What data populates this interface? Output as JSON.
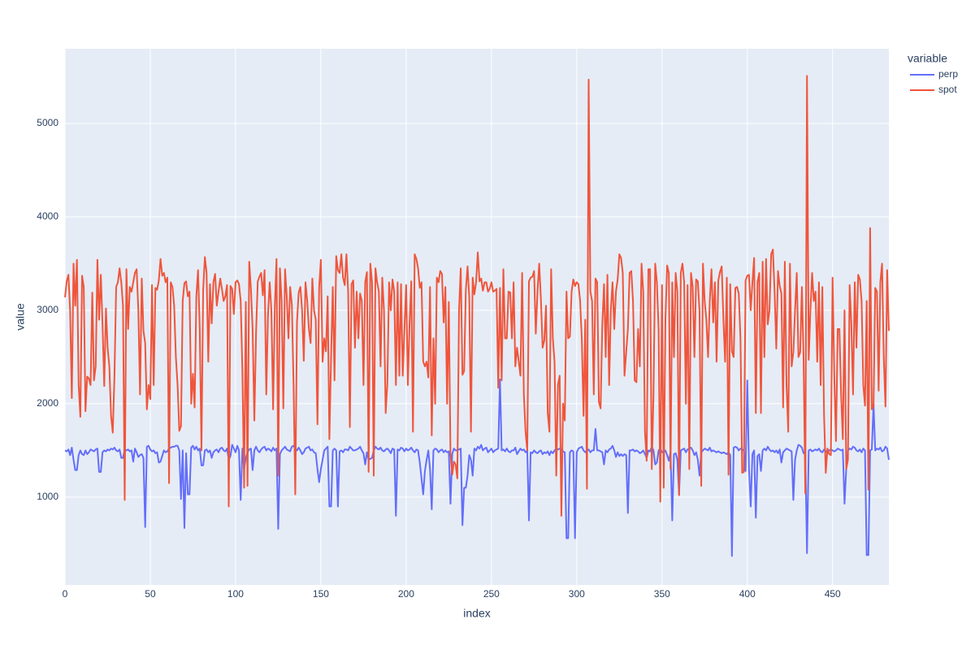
{
  "chart_data": {
    "type": "line",
    "xlabel": "index",
    "ylabel": "value",
    "legend_title": "variable",
    "legend": "right",
    "grid": true,
    "xlim": [
      0,
      483
    ],
    "xticks": [
      0,
      50,
      100,
      150,
      200,
      250,
      300,
      350,
      400,
      450
    ],
    "ylim": [
      60,
      5800
    ],
    "yticks": [
      1000,
      2000,
      3000,
      4000,
      5000
    ],
    "series": [
      {
        "name": "perp",
        "color": "#636efa",
        "values": [
          1500,
          1490,
          1510,
          1450,
          1530,
          1400,
          1290,
          1290,
          1450,
          1500,
          1460,
          1450,
          1500,
          1460,
          1480,
          1510,
          1500,
          1490,
          1510,
          1520,
          1270,
          1270,
          1480,
          1500,
          1490,
          1510,
          1500,
          1520,
          1510,
          1530,
          1500,
          1490,
          1510,
          1420,
          1420,
          1510,
          1500,
          1510,
          1490,
          1500,
          1380,
          1520,
          1480,
          1430,
          1450,
          1460,
          1420,
          680,
          1540,
          1550,
          1510,
          1490,
          1500,
          1470,
          1480,
          1370,
          1380,
          1440,
          1500,
          1480,
          1490,
          1520,
          1530,
          1540,
          1540,
          1550,
          1550,
          1500,
          980,
          1500,
          670,
          1470,
          1030,
          1030,
          1530,
          1550,
          1510,
          1540,
          1500,
          1520,
          1340,
          1340,
          1500,
          1510,
          1480,
          1500,
          1420,
          1480,
          1500,
          1510,
          1480,
          1520,
          1530,
          1500,
          1490,
          1520,
          1400,
          1440,
          1560,
          1520,
          1480,
          1550,
          1500,
          970,
          1520,
          1300,
          1420,
          1480,
          1510,
          1520,
          1290,
          1500,
          1540,
          1500,
          1480,
          1510,
          1530,
          1540,
          1500,
          1520,
          1510,
          1490,
          1530,
          1500,
          1520,
          660,
          1460,
          1500,
          1520,
          1540,
          1510,
          1500,
          1490,
          1540,
          1550,
          1520,
          1500,
          1530,
          1500,
          1460,
          1480,
          1520,
          1530,
          1540,
          1500,
          1510,
          1480,
          1470,
          1300,
          1160,
          1300,
          1400,
          1500,
          1520,
          1540,
          900,
          900,
          1500,
          1520,
          1500,
          900,
          1490,
          1500,
          1480,
          1510,
          1510,
          1500,
          1540,
          1520,
          1500,
          1500,
          1510,
          1520,
          1540,
          1500,
          1470,
          1350,
          1480,
          1400,
          1410,
          1420,
          1500,
          1540,
          1520,
          1510,
          1530,
          1500,
          1490,
          1510,
          1520,
          1500,
          1470,
          1520,
          1510,
          800,
          1510,
          1500,
          1530,
          1520,
          1490,
          1520,
          1500,
          1510,
          1530,
          1500,
          1480,
          1510,
          1500,
          1370,
          1200,
          1030,
          1280,
          1400,
          1500,
          1300,
          870,
          1500,
          1520,
          1510,
          1480,
          1500,
          1510,
          1480,
          1500,
          1480,
          1490,
          930,
          1460,
          1520,
          1500,
          1500,
          1510,
          1520,
          700,
          1100,
          1100,
          1230,
          1450,
          1400,
          1230,
          1520,
          1500,
          1540,
          1520,
          1560,
          1500,
          1520,
          1530,
          1480,
          1500,
          1520,
          1480,
          1500,
          1510,
          1520,
          2260,
          1500,
          1510,
          1490,
          1520,
          1490,
          1480,
          1500,
          1500,
          1530,
          1460,
          1490,
          1520,
          1500,
          1510,
          1480,
          1500,
          750,
          1480,
          1470,
          1500,
          1480,
          1470,
          1490,
          1500,
          1460,
          1480,
          1470,
          1490,
          1450,
          1490,
          1470,
          1500,
          1520,
          1510,
          1520,
          1510,
          1490,
          1480,
          560,
          560,
          1480,
          1500,
          1490,
          560,
          1480,
          1520,
          1530,
          1540,
          1500,
          1480,
          1500,
          1510,
          1480,
          1500,
          1500,
          1730,
          1500,
          1500,
          1490,
          1480,
          1350,
          1500,
          1480,
          1510,
          1520,
          1550,
          1500,
          1430,
          1480,
          1440,
          1460,
          1440,
          1460,
          1450,
          830,
          1500,
          1500,
          1510,
          1490,
          1500,
          1490,
          1470,
          1480,
          1500,
          1460,
          1420,
          1500,
          1490,
          1540,
          1500,
          1350,
          1370,
          1500,
          1520,
          1480,
          1480,
          1500,
          1450,
          1390,
          1480,
          750,
          1460,
          1470,
          1400,
          1030,
          1500,
          1510,
          1520,
          1480,
          1510,
          1520,
          1530,
          1500,
          1450,
          1480,
          1400,
          1230,
          1480,
          1500,
          1520,
          1510,
          1500,
          1530,
          1490,
          1500,
          1490,
          1480,
          1490,
          1480,
          1470,
          1480,
          1470,
          1460,
          1480,
          1450,
          370,
          1530,
          1540,
          1530,
          1500,
          1520,
          1510,
          1500,
          1280,
          2250,
          1300,
          900,
          1460,
          1500,
          780,
          1440,
          1460,
          1280,
          1500,
          1520,
          1500,
          1540,
          1510,
          1490,
          1500,
          1480,
          1500,
          1470,
          1510,
          1370,
          1480,
          1500,
          1520,
          1510,
          1500,
          1490,
          970,
          1400,
          1500,
          1560,
          1550,
          1530,
          1470,
          1470,
          400,
          1500,
          1510,
          1490,
          1500,
          1510,
          1500,
          1520,
          1490,
          1480,
          1510,
          1480,
          1500,
          1500,
          1510,
          1500,
          1490,
          1500,
          1520,
          1510,
          1500,
          1510,
          930,
          1300,
          1500,
          1520,
          1510,
          1540,
          1530,
          1500,
          1490,
          1510,
          1480,
          1520,
          1500,
          380,
          380,
          1500,
          1510,
          2000,
          1500,
          1520,
          1510,
          1530,
          1490,
          1500,
          1540,
          1520,
          1400
        ]
      },
      {
        "name": "spot",
        "color": "#EF553B",
        "values": [
          3140,
          3310,
          3380,
          3000,
          2060,
          3500,
          3050,
          3540,
          2200,
          1860,
          3370,
          3250,
          1920,
          2290,
          2270,
          2200,
          3190,
          2250,
          2400,
          3540,
          2900,
          3380,
          2850,
          2190,
          3020,
          2600,
          2400,
          1870,
          1690,
          2300,
          3250,
          3300,
          3450,
          3300,
          3050,
          970,
          3440,
          2800,
          3250,
          3200,
          3300,
          3400,
          3440,
          3000,
          2100,
          3340,
          2780,
          2650,
          1940,
          2200,
          2050,
          3270,
          2200,
          3240,
          3220,
          3320,
          3550,
          3370,
          3400,
          3300,
          3350,
          1150,
          3300,
          3250,
          3050,
          2500,
          2200,
          1710,
          1760,
          3100,
          3290,
          3310,
          3150,
          3200,
          2000,
          2320,
          1960,
          3150,
          3430,
          2800,
          1500,
          3220,
          3570,
          3400,
          2450,
          3280,
          2860,
          3300,
          3390,
          3050,
          3200,
          3340,
          3230,
          3100,
          3150,
          3270,
          900,
          3260,
          3230,
          2960,
          3300,
          3320,
          3280,
          3100,
          2350,
          1100,
          3090,
          1120,
          3520,
          3230,
          2800,
          1820,
          2750,
          3310,
          3360,
          3400,
          3160,
          3430,
          2100,
          2950,
          3300,
          3000,
          1940,
          3030,
          3550,
          1230,
          3450,
          3100,
          1950,
          3440,
          3150,
          2700,
          3250,
          3060,
          2200,
          1030,
          2870,
          3190,
          3250,
          3000,
          2460,
          3300,
          3100,
          2800,
          2650,
          3340,
          3000,
          2900,
          1780,
          3250,
          3540,
          2450,
          2700,
          2560,
          3150,
          1620,
          2500,
          3250,
          2250,
          3580,
          3430,
          3400,
          3600,
          3350,
          3270,
          3600,
          3200,
          1750,
          3280,
          3320,
          2600,
          3200,
          2700,
          3180,
          3100,
          2200,
          3300,
          3410,
          1270,
          3500,
          3300,
          1230,
          3450,
          3300,
          3200,
          2400,
          3350,
          3000,
          1900,
          2220,
          3300,
          3000,
          3330,
          3200,
          2200,
          3300,
          2300,
          3280,
          2300,
          2800,
          3270,
          2200,
          2850,
          3310,
          1700,
          3600,
          3550,
          3450,
          3240,
          3300,
          2450,
          2400,
          2450,
          2280,
          3250,
          1660,
          2700,
          2000,
          3350,
          3300,
          3420,
          3390,
          2870,
          3250,
          2000,
          3090,
          1450,
          1240,
          1380,
          1350,
          1200,
          3000,
          3450,
          2310,
          2350,
          3220,
          3470,
          3140,
          1700,
          3350,
          3170,
          3300,
          3620,
          3310,
          3340,
          3210,
          3300,
          3300,
          3200,
          3230,
          3300,
          3200,
          3210,
          3230,
          2170,
          3240,
          2250,
          3440,
          2700,
          2700,
          3200,
          3190,
          2700,
          3300,
          2400,
          2600,
          2450,
          2300,
          3400,
          2100,
          1700,
          1500,
          3310,
          3350,
          3360,
          3420,
          2750,
          3200,
          3500,
          3120,
          2600,
          2680,
          3050,
          1900,
          1700,
          3440,
          2700,
          2450,
          1230,
          2200,
          2300,
          800,
          2000,
          1820,
          3200,
          2700,
          2720,
          3200,
          3330,
          3260,
          3300,
          3280,
          3100,
          2680,
          1870,
          2900,
          1090,
          5470,
          3200,
          3100,
          2100,
          3340,
          3300,
          2020,
          1950,
          2850,
          3280,
          2500,
          3380,
          2200,
          3000,
          3300,
          2800,
          3200,
          3330,
          3600,
          3560,
          3400,
          2300,
          2550,
          2800,
          3400,
          3420,
          3100,
          2250,
          2230,
          2800,
          2400,
          3500,
          3200,
          1700,
          1390,
          3440,
          3440,
          1300,
          2100,
          3500,
          3300,
          2800,
          950,
          3270,
          1100,
          2900,
          3480,
          3400,
          1300,
          3300,
          2500,
          3400,
          3200,
          1020,
          3400,
          3500,
          3300,
          2000,
          3270,
          1300,
          3400,
          3250,
          2500,
          3330,
          3310,
          2990,
          1120,
          3500,
          3100,
          2900,
          2500,
          3100,
          3440,
          2870,
          3300,
          2450,
          3320,
          3410,
          3470,
          2900,
          2450,
          3350,
          1240,
          3280,
          2560,
          2500,
          3240,
          3250,
          3180,
          2700,
          1260,
          1270,
          3320,
          3370,
          3380,
          3000,
          3300,
          3560,
          1900,
          3300,
          3400,
          1900,
          3520,
          2500,
          3550,
          2850,
          3000,
          3600,
          3650,
          3200,
          2590,
          3420,
          3260,
          3180,
          1960,
          3520,
          2200,
          1700,
          3500,
          2400,
          2550,
          3000,
          3400,
          2500,
          2550,
          3250,
          2480,
          1040,
          5510,
          2470,
          3000,
          3400,
          3100,
          3200,
          2450,
          3300,
          2200,
          3250,
          1880,
          1260,
          1520,
          1460,
          1450,
          3350,
          2300,
          1600,
          2800,
          2800,
          2100,
          1620,
          3000,
          1300,
          1400,
          3270,
          2850,
          2100,
          3300,
          2600,
          3380,
          3330,
          3100,
          2200,
          1980,
          3100,
          1080,
          3880,
          1940,
          1970,
          3240,
          3200,
          2140,
          3300,
          3500,
          2500,
          1970,
          3430,
          2780
        ]
      }
    ]
  }
}
